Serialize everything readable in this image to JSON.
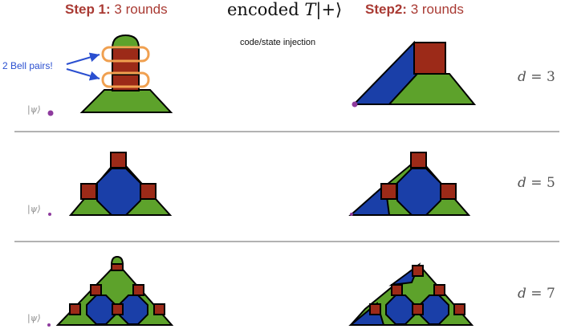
{
  "header": {
    "step1_bold": "Step 1:",
    "step1_rest": " 3 rounds",
    "title_pre": "encoded ",
    "title_T": "T",
    "title_ket": "|+⟩",
    "subtitle": "code/state injection",
    "step2_bold": "Step2:",
    "step2_rest": " 3 rounds"
  },
  "annotation": {
    "bell_pairs": "2 Bell pairs!"
  },
  "rows": [
    {
      "ket": "|ψ⟩",
      "d_var": "d",
      "d_eq": " = 3"
    },
    {
      "ket": "|ψ⟩",
      "d_var": "d",
      "d_eq": " = 5"
    },
    {
      "ket": "|ψ⟩",
      "d_var": "d",
      "d_eq": " = 7"
    }
  ],
  "colors": {
    "green": "#5da22b",
    "blue": "#1a3fa8",
    "red": "#9c2a18",
    "orange": "#f0a050",
    "purple": "#8e3b9e",
    "arrow": "#2a4fd0",
    "divider": "#999999"
  }
}
